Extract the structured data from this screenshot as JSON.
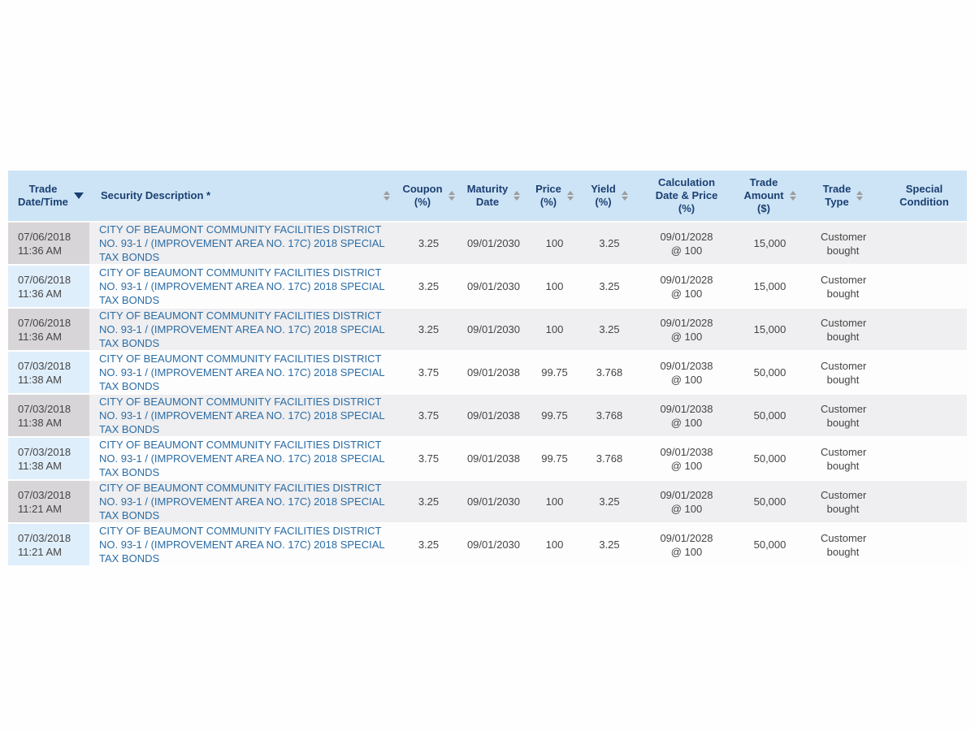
{
  "colors": {
    "header_bg": "#cde4f6",
    "header_text": "#1b3f72",
    "row_odd_bg": "#efeef0",
    "row_odd_first_cell_bg": "#d8d5d8",
    "row_even_bg": "#fdfdfe",
    "row_even_first_cell_bg": "#dfeefb",
    "link_blue": "#2b6da5",
    "sort_arrow_gray": "#9d9d9d",
    "body_text": "#454545"
  },
  "table": {
    "columns": [
      {
        "id": "trade_datetime",
        "label": "Trade\nDate/Time",
        "sort": "active-desc"
      },
      {
        "id": "security_description",
        "label": "Security Description *",
        "sort": "sortable"
      },
      {
        "id": "coupon",
        "label": "Coupon\n(%)",
        "sort": "sortable"
      },
      {
        "id": "maturity_date",
        "label": "Maturity\nDate",
        "sort": "sortable"
      },
      {
        "id": "price",
        "label": "Price\n(%)",
        "sort": "sortable"
      },
      {
        "id": "yield",
        "label": "Yield\n(%)",
        "sort": "sortable"
      },
      {
        "id": "calc_date_price",
        "label": "Calculation\nDate & Price\n(%)",
        "sort": "none"
      },
      {
        "id": "trade_amount",
        "label": "Trade\nAmount\n($)",
        "sort": "sortable"
      },
      {
        "id": "trade_type",
        "label": "Trade\nType",
        "sort": "sortable"
      },
      {
        "id": "special_condition",
        "label": "Special\nCondition",
        "sort": "none"
      }
    ],
    "rows": [
      {
        "trade_datetime": "07/06/2018\n11:36 AM",
        "security_description": "CITY OF BEAUMONT COMMUNITY FACILITIES DISTRICT NO. 93-1 / (IMPROVEMENT AREA NO. 17C) 2018 SPECIAL TAX BONDS",
        "coupon": "3.25",
        "maturity_date": "09/01/2030",
        "price": "100",
        "yield": "3.25",
        "calc_date_price": "09/01/2028\n@ 100",
        "trade_amount": "15,000",
        "trade_type": "Customer bought",
        "special_condition": ""
      },
      {
        "trade_datetime": "07/06/2018\n11:36 AM",
        "security_description": "CITY OF BEAUMONT COMMUNITY FACILITIES DISTRICT NO. 93-1 / (IMPROVEMENT AREA NO. 17C) 2018 SPECIAL TAX BONDS",
        "coupon": "3.25",
        "maturity_date": "09/01/2030",
        "price": "100",
        "yield": "3.25",
        "calc_date_price": "09/01/2028\n@ 100",
        "trade_amount": "15,000",
        "trade_type": "Customer bought",
        "special_condition": ""
      },
      {
        "trade_datetime": "07/06/2018\n11:36 AM",
        "security_description": "CITY OF BEAUMONT COMMUNITY FACILITIES DISTRICT NO. 93-1 / (IMPROVEMENT AREA NO. 17C) 2018 SPECIAL TAX BONDS",
        "coupon": "3.25",
        "maturity_date": "09/01/2030",
        "price": "100",
        "yield": "3.25",
        "calc_date_price": "09/01/2028\n@ 100",
        "trade_amount": "15,000",
        "trade_type": "Customer bought",
        "special_condition": ""
      },
      {
        "trade_datetime": "07/03/2018\n11:38 AM",
        "security_description": "CITY OF BEAUMONT COMMUNITY FACILITIES DISTRICT NO. 93-1 / (IMPROVEMENT AREA NO. 17C) 2018 SPECIAL TAX BONDS",
        "coupon": "3.75",
        "maturity_date": "09/01/2038",
        "price": "99.75",
        "yield": "3.768",
        "calc_date_price": "09/01/2038\n@ 100",
        "trade_amount": "50,000",
        "trade_type": "Customer bought",
        "special_condition": ""
      },
      {
        "trade_datetime": "07/03/2018\n11:38 AM",
        "security_description": "CITY OF BEAUMONT COMMUNITY FACILITIES DISTRICT NO. 93-1 / (IMPROVEMENT AREA NO. 17C) 2018 SPECIAL TAX BONDS",
        "coupon": "3.75",
        "maturity_date": "09/01/2038",
        "price": "99.75",
        "yield": "3.768",
        "calc_date_price": "09/01/2038\n@ 100",
        "trade_amount": "50,000",
        "trade_type": "Customer bought",
        "special_condition": ""
      },
      {
        "trade_datetime": "07/03/2018\n11:38 AM",
        "security_description": "CITY OF BEAUMONT COMMUNITY FACILITIES DISTRICT NO. 93-1 / (IMPROVEMENT AREA NO. 17C) 2018 SPECIAL TAX BONDS",
        "coupon": "3.75",
        "maturity_date": "09/01/2038",
        "price": "99.75",
        "yield": "3.768",
        "calc_date_price": "09/01/2038\n@ 100",
        "trade_amount": "50,000",
        "trade_type": "Customer bought",
        "special_condition": ""
      },
      {
        "trade_datetime": "07/03/2018\n11:21 AM",
        "security_description": "CITY OF BEAUMONT COMMUNITY FACILITIES DISTRICT NO. 93-1 / (IMPROVEMENT AREA NO. 17C) 2018 SPECIAL TAX BONDS",
        "coupon": "3.25",
        "maturity_date": "09/01/2030",
        "price": "100",
        "yield": "3.25",
        "calc_date_price": "09/01/2028\n@ 100",
        "trade_amount": "50,000",
        "trade_type": "Customer bought",
        "special_condition": ""
      },
      {
        "trade_datetime": "07/03/2018\n11:21 AM",
        "security_description": "CITY OF BEAUMONT COMMUNITY FACILITIES DISTRICT NO. 93-1 / (IMPROVEMENT AREA NO. 17C) 2018 SPECIAL TAX BONDS",
        "coupon": "3.25",
        "maturity_date": "09/01/2030",
        "price": "100",
        "yield": "3.25",
        "calc_date_price": "09/01/2028\n@ 100",
        "trade_amount": "50,000",
        "trade_type": "Customer bought",
        "special_condition": ""
      }
    ]
  }
}
